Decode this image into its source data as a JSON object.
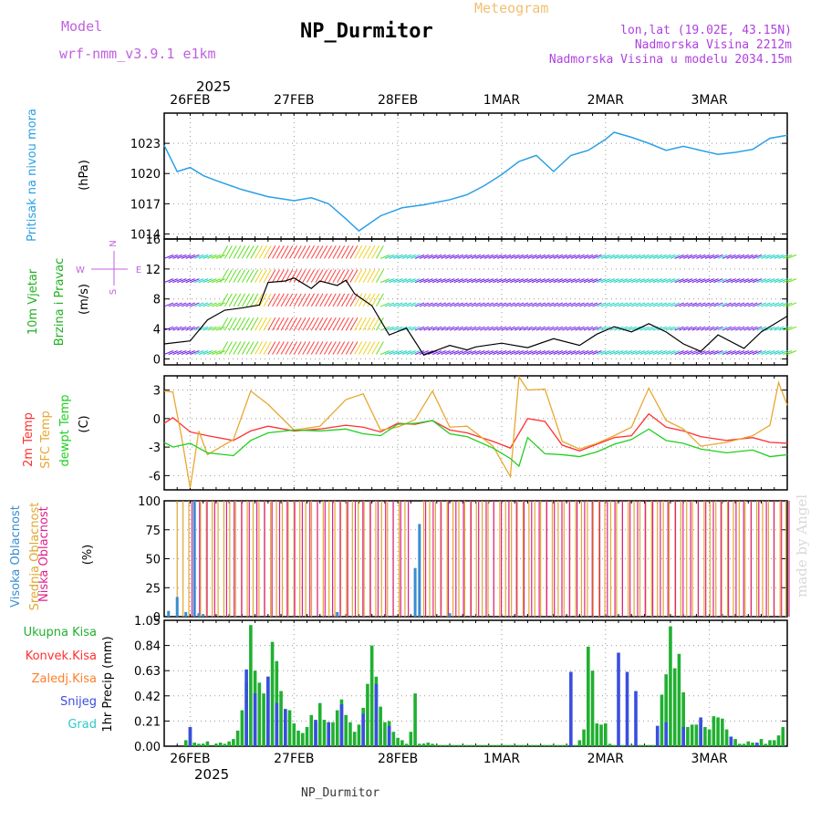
{
  "header": {
    "model_label": "Model",
    "model_name": "wrf-nmm_v3.9.1 e1km",
    "title": "NP_Durmitor",
    "product": "Meteogram",
    "lonlat": "lon,lat (19.02E, 43.15N)",
    "elevation": "Nadmorska Visina 2212m",
    "model_elevation": "Nadmorska Visina u modelu 2034.15m",
    "footer": "NP_Durmitor",
    "credit": "made by Angel",
    "year_top": "2025",
    "year_bottom": "2025"
  },
  "colors": {
    "model": "#c060e0",
    "title": "#000000",
    "product": "#f0c070",
    "location": "#b040e0",
    "pressure": "#2aa0e6",
    "wind_label": "#20b020",
    "temp2m": "#ff3030",
    "sfc": "#e8a830",
    "dew": "#20d020",
    "cloud_high": "#3a8cd0",
    "cloud_mid": "#e0a830",
    "cloud_low": "#e0208a",
    "rain_total": "#20b030",
    "rain_conv": "#ff3030",
    "rain_frz": "#ff7f2a",
    "snow": "#3a4ee0",
    "hail": "#30c8c8"
  },
  "chart_data": [
    {
      "type": "line",
      "title": "Pritisak na nivou mora",
      "ylabel": "(hPa)",
      "ylim": [
        1013.5,
        1026
      ],
      "yticks": [
        1014,
        1017,
        1020,
        1023
      ],
      "x_domain": [
        0,
        144
      ],
      "x_ticks": [
        {
          "label": "26FEB",
          "x": 6
        },
        {
          "label": "27FEB",
          "x": 30
        },
        {
          "label": "28FEB",
          "x": 54
        },
        {
          "label": "1MAR",
          "x": 78
        },
        {
          "label": "2MAR",
          "x": 102
        },
        {
          "label": "3MAR",
          "x": 126
        }
      ],
      "grid": true,
      "series": [
        {
          "name": "Pritisak na nivou mora",
          "x": [
            0,
            3,
            6,
            9,
            12,
            18,
            24,
            30,
            34,
            38,
            42,
            45,
            50,
            55,
            60,
            66,
            70,
            74,
            78,
            82,
            86,
            90,
            94,
            98,
            102,
            104,
            108,
            112,
            116,
            120,
            124,
            128,
            132,
            136,
            140,
            144
          ],
          "values": [
            1022.8,
            1020.2,
            1020.6,
            1019.8,
            1019.3,
            1018.4,
            1017.7,
            1017.3,
            1017.6,
            1017.0,
            1015.5,
            1014.3,
            1015.8,
            1016.6,
            1016.9,
            1017.4,
            1017.9,
            1018.8,
            1019.9,
            1021.2,
            1021.8,
            1020.2,
            1021.8,
            1022.3,
            1023.4,
            1024.1,
            1023.6,
            1023.0,
            1022.3,
            1022.7,
            1022.3,
            1021.9,
            1022.1,
            1022.4,
            1023.5,
            1023.8
          ]
        }
      ]
    },
    {
      "type": "line",
      "title": "10m Vjetar Brzina i Pravac",
      "ylabel": "(m/s)",
      "ylim": [
        -0.8,
        16
      ],
      "yticks": [
        0,
        4,
        8,
        12,
        16
      ],
      "x_domain": [
        0,
        144
      ],
      "direction_legend": [
        "N",
        "E",
        "S",
        "W"
      ],
      "grid": true,
      "series": [
        {
          "name": "Brzina vjetra",
          "x": [
            0,
            6,
            10,
            14,
            18,
            22,
            24,
            28,
            30,
            34,
            36,
            40,
            42,
            44,
            48,
            52,
            56,
            60,
            66,
            70,
            72,
            78,
            84,
            90,
            96,
            100,
            104,
            108,
            112,
            116,
            120,
            124,
            128,
            134,
            138,
            142,
            144
          ],
          "values": [
            2.0,
            2.4,
            5.2,
            6.5,
            6.8,
            7.2,
            10.2,
            10.4,
            10.8,
            9.4,
            10.4,
            9.8,
            10.5,
            8.7,
            7.1,
            3.2,
            4.1,
            0.5,
            1.8,
            1.2,
            1.6,
            2.1,
            1.5,
            2.7,
            1.8,
            3.3,
            4.3,
            3.6,
            4.7,
            3.6,
            2.0,
            1.0,
            3.2,
            1.4,
            3.6,
            5.0,
            5.7
          ]
        }
      ]
    },
    {
      "type": "line",
      "ylabel": "(C)",
      "ylim": [
        -7.5,
        4.5
      ],
      "yticks": [
        -6,
        -3,
        0,
        3
      ],
      "x_domain": [
        0,
        144
      ],
      "grid": true,
      "series": [
        {
          "name": "2m Temp",
          "x": [
            0,
            2,
            6,
            10,
            16,
            20,
            24,
            30,
            36,
            42,
            46,
            50,
            54,
            58,
            62,
            66,
            70,
            76,
            80,
            84,
            88,
            92,
            96,
            100,
            104,
            108,
            112,
            116,
            120,
            124,
            130,
            136,
            140,
            144
          ],
          "values": [
            -0.5,
            0.1,
            -1.4,
            -1.8,
            -2.3,
            -1.3,
            -0.8,
            -1.3,
            -1.1,
            -0.7,
            -0.9,
            -1.4,
            -0.5,
            -0.6,
            -0.2,
            -1.2,
            -1.5,
            -2.4,
            -3.1,
            0.0,
            -0.3,
            -2.8,
            -3.4,
            -2.7,
            -2.0,
            -1.8,
            0.5,
            -0.9,
            -1.3,
            -1.9,
            -2.3,
            -2.0,
            -2.5,
            -2.6
          ]
        },
        {
          "name": "SFC Temp",
          "x": [
            0,
            2,
            4,
            6,
            8,
            10,
            16,
            20,
            24,
            30,
            36,
            42,
            46,
            50,
            54,
            58,
            62,
            66,
            70,
            76,
            80,
            82,
            84,
            88,
            92,
            96,
            100,
            104,
            108,
            112,
            116,
            120,
            124,
            130,
            136,
            140,
            142,
            144
          ],
          "values": [
            2.9,
            2.8,
            -1.9,
            -7.3,
            -1.3,
            -3.8,
            -2.2,
            2.9,
            1.5,
            -1.2,
            -0.8,
            2.0,
            2.6,
            -1.2,
            -0.9,
            -0.1,
            2.9,
            -0.9,
            -0.8,
            -2.9,
            -6.1,
            4.4,
            3.0,
            3.1,
            -2.4,
            -3.2,
            -2.6,
            -1.8,
            -0.9,
            3.2,
            -0.2,
            -1.1,
            -2.9,
            -2.5,
            -1.8,
            -0.7,
            3.8,
            1.4
          ]
        },
        {
          "name": "dewpt Temp",
          "x": [
            0,
            2,
            6,
            10,
            16,
            20,
            24,
            30,
            36,
            42,
            46,
            50,
            54,
            58,
            62,
            66,
            70,
            76,
            80,
            82,
            84,
            88,
            92,
            96,
            100,
            104,
            108,
            112,
            116,
            120,
            124,
            130,
            136,
            140,
            144
          ],
          "values": [
            -2.5,
            -3.0,
            -2.6,
            -3.6,
            -3.9,
            -2.3,
            -1.5,
            -1.2,
            -1.3,
            -1.1,
            -1.6,
            -1.8,
            -0.6,
            -0.5,
            -0.2,
            -1.6,
            -1.9,
            -3.1,
            -4.2,
            -5.0,
            -2.0,
            -3.7,
            -3.8,
            -4.0,
            -3.5,
            -2.7,
            -2.2,
            -1.1,
            -2.3,
            -2.6,
            -3.2,
            -3.6,
            -3.3,
            -4.0,
            -3.8
          ]
        }
      ]
    },
    {
      "type": "bar",
      "ylabel": "(%)",
      "ylim": [
        0,
        100
      ],
      "yticks": [
        0,
        25,
        50,
        75,
        100
      ],
      "x_domain": [
        0,
        144
      ],
      "grid": true,
      "series": [
        {
          "name": "Visoka Oblacnost",
          "x": [
            1,
            3,
            5,
            7,
            8,
            9,
            40,
            58,
            59,
            66
          ],
          "values": [
            5,
            17,
            4,
            100,
            3,
            2,
            4,
            42,
            80,
            3
          ]
        },
        {
          "name": "Srednja Oblacnost",
          "segments": [
            [
              3,
              57
            ],
            [
              60,
              144
            ]
          ],
          "value": 100,
          "spacing": 1.35
        },
        {
          "name": "Niska Oblacnost",
          "segments": [
            [
              6,
              12
            ],
            [
              14,
              57
            ],
            [
              60,
              144
            ]
          ],
          "value": 100,
          "spacing": 1.75
        }
      ]
    },
    {
      "type": "bar",
      "ylabel": "1hr Precip (mm)",
      "ylim": [
        0,
        1.05
      ],
      "yticks": [
        0,
        0.21,
        0.42,
        0.63,
        0.84,
        1.05
      ],
      "x_domain": [
        0,
        144
      ],
      "grid": true,
      "series": [
        {
          "name": "Ukupna Kisa",
          "x": [
            5,
            6,
            7,
            8,
            9,
            10,
            12,
            13,
            14,
            15,
            16,
            17,
            18,
            19,
            20,
            21,
            22,
            23,
            24,
            25,
            26,
            27,
            28,
            29,
            30,
            31,
            32,
            33,
            34,
            35,
            36,
            37,
            38,
            39,
            40,
            41,
            42,
            43,
            44,
            45,
            46,
            47,
            48,
            49,
            50,
            51,
            52,
            53,
            54,
            55,
            56,
            57,
            58,
            59,
            60,
            61,
            62,
            63,
            64,
            65,
            66,
            67,
            68,
            69,
            70,
            71,
            72,
            73,
            74,
            75,
            76,
            77,
            78,
            79,
            80,
            81,
            82,
            83,
            84,
            85,
            86,
            87,
            88,
            89,
            90,
            91,
            92,
            93,
            94,
            95,
            96,
            97,
            98,
            99,
            100,
            101,
            102,
            103,
            104,
            105,
            106,
            107,
            108,
            109,
            110,
            111,
            112,
            113,
            114,
            115,
            116,
            117,
            118,
            119,
            120,
            121,
            122,
            123,
            124,
            125,
            126,
            127,
            128,
            129,
            130,
            131,
            132,
            133,
            134,
            135,
            136,
            137,
            138,
            139,
            140,
            141,
            142,
            143
          ],
          "values": [
            0.05,
            0.16,
            0.03,
            0.02,
            0.02,
            0.04,
            0.02,
            0.03,
            0.02,
            0.04,
            0.06,
            0.13,
            0.3,
            0.53,
            1.01,
            0.63,
            0.53,
            0.44,
            0.58,
            0.87,
            0.71,
            0.46,
            0.31,
            0.3,
            0.19,
            0.13,
            0.11,
            0.16,
            0.26,
            0.2,
            0.36,
            0.22,
            0.2,
            0.2,
            0.3,
            0.39,
            0.26,
            0.2,
            0.12,
            0.18,
            0.32,
            0.52,
            0.84,
            0.58,
            0.33,
            0.2,
            0.21,
            0.12,
            0.07,
            0.05,
            0.02,
            0.12,
            0.44,
            0.02,
            0.02,
            0.03,
            0.02,
            0.01,
            0.01,
            0.01,
            0.01,
            0.01,
            0.01,
            0.01,
            0.01,
            0.01,
            0.01,
            0.01,
            0.01,
            0.01,
            0.01,
            0.01,
            0.01,
            0.01,
            0.01,
            0.01,
            0.01,
            0.01,
            0.01,
            0.01,
            0.01,
            0.01,
            0.01,
            0.01,
            0.01,
            0.01,
            0.01,
            0.01,
            0.01,
            0.01,
            0.05,
            0.14,
            0.83,
            0.63,
            0.19,
            0.18,
            0.19,
            0.02,
            0.01,
            0.01,
            0.01,
            0.01,
            0.01,
            0.01,
            0.01,
            0.01,
            0.01,
            0.01,
            0.01,
            0.43,
            0.6,
            1.0,
            0.65,
            0.77,
            0.45,
            0.16,
            0.18,
            0.18,
            0.2,
            0.16,
            0.14,
            0.25,
            0.24,
            0.23,
            0.14,
            0.08,
            0.06,
            0.02,
            0.02,
            0.04,
            0.03,
            0.02,
            0.06,
            0.02,
            0.05,
            0.05,
            0.09,
            0.16
          ]
        },
        {
          "name": "Konvek.Kisa",
          "x": [],
          "values": []
        },
        {
          "name": "Zaledj.Kisa",
          "x": [],
          "values": []
        },
        {
          "name": "Snijeg",
          "x": [
            6,
            19,
            21,
            24,
            26,
            28,
            35,
            38,
            41,
            46,
            49,
            52,
            94,
            105,
            107,
            109,
            114,
            116,
            120,
            124,
            131,
            137
          ],
          "values": [
            0.16,
            0.64,
            0.44,
            0.58,
            0.36,
            0.31,
            0.22,
            0.2,
            0.35,
            0.27,
            0.52,
            0.17,
            0.62,
            0.78,
            0.62,
            0.46,
            0.17,
            0.2,
            0.16,
            0.24,
            0.08,
            0.03
          ]
        },
        {
          "name": "Grad",
          "x": [],
          "values": []
        }
      ],
      "x_ticks_bottom": [
        {
          "label": "26FEB",
          "x": 6
        },
        {
          "label": "27FEB",
          "x": 30
        },
        {
          "label": "28FEB",
          "x": 54
        },
        {
          "label": "1MAR",
          "x": 78
        },
        {
          "label": "2MAR",
          "x": 102
        },
        {
          "label": "3MAR",
          "x": 126
        }
      ]
    }
  ],
  "legends": {
    "pressure": [
      "Pritisak na nivou mora"
    ],
    "wind": [
      "10m Vjetar",
      "Brzina i Pravac"
    ],
    "temp": [
      "2m Temp",
      "SFC Temp",
      "dewpt Temp"
    ],
    "cloud": [
      "Visoka Oblacnost",
      "Srednja Oblacnost",
      "Niska Oblacnost"
    ],
    "precip": [
      "Ukupna Kisa",
      "Konvek.Kisa",
      "Zaledj.Kisa",
      "Snijeg",
      "Grad"
    ]
  }
}
